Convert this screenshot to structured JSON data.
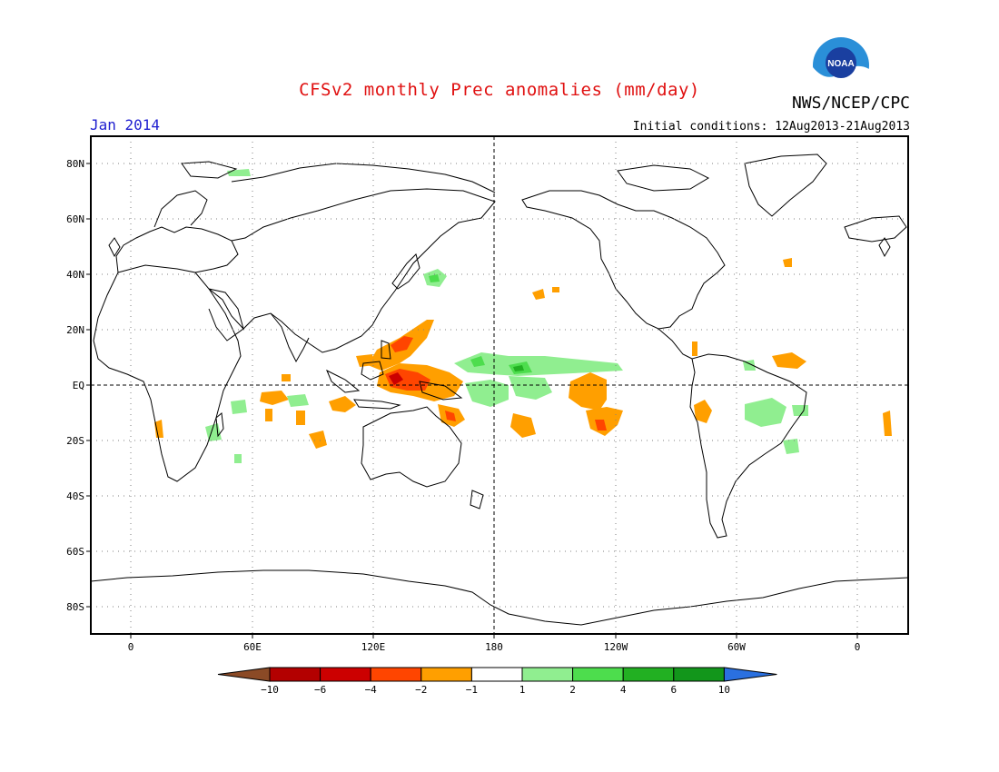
{
  "header": {
    "title": "CFSv2 monthly Prec anomalies (mm/day)",
    "period": "Jan 2014",
    "initial_conditions": "Initial conditions: 12Aug2013-21Aug2013",
    "agency": "NWS/NCEP/CPC",
    "logo_text": "NOAA"
  },
  "axes": {
    "lat_labels": [
      "80N",
      "60N",
      "40N",
      "20N",
      "EQ",
      "20S",
      "40S",
      "60S",
      "80S"
    ],
    "lon_labels": [
      "0",
      "60E",
      "120E",
      "180",
      "120W",
      "60W",
      "0"
    ]
  },
  "colorbar": {
    "labels": [
      "-10",
      "-6",
      "-4",
      "-2",
      "-1",
      "1",
      "2",
      "4",
      "6",
      "10"
    ],
    "colors": [
      "#8b4a26",
      "#b30000",
      "#cc0000",
      "#ff4500",
      "#ff9f00",
      "#ffffff",
      "#90ee90",
      "#4ddd4d",
      "#22b022",
      "#12961b",
      "#2a70e0"
    ]
  },
  "map_colors": {
    "land_outline": "#000000",
    "anomaly_light_orange": "#ff9f00",
    "anomaly_dark_orange": "#ff4500",
    "anomaly_red": "#cc0000",
    "anomaly_light_green": "#90ee90",
    "anomaly_green": "#4ddd4d",
    "anomaly_dark_green": "#22b022"
  }
}
